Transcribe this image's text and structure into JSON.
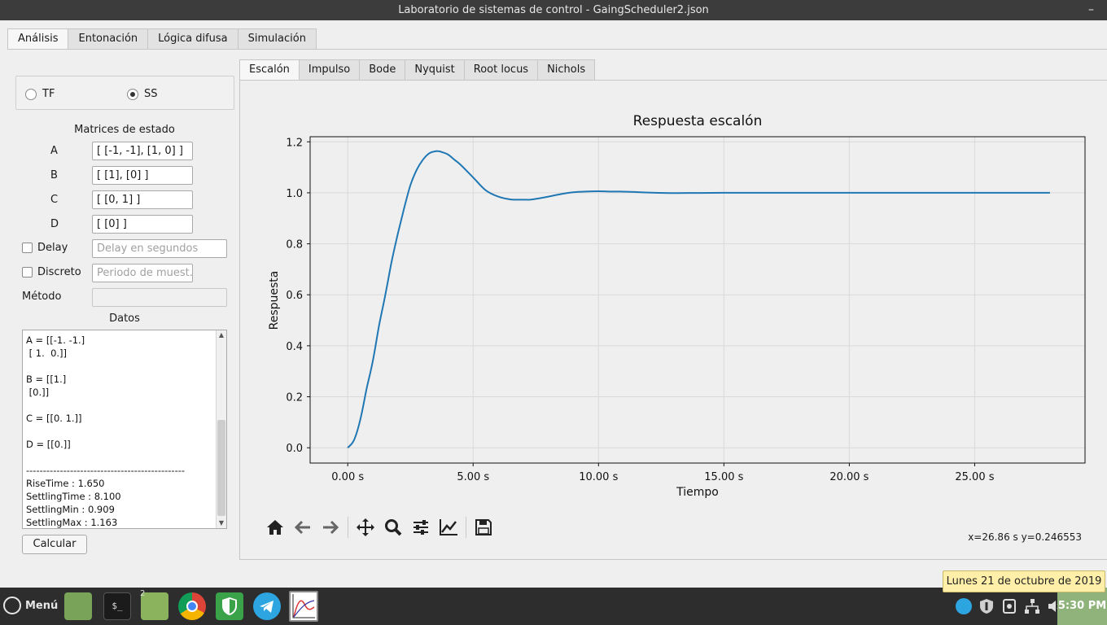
{
  "window": {
    "title": "Laboratorio de sistemas de control - GaingScheduler2.json",
    "minimize": "–"
  },
  "main_tabs": [
    {
      "label": "Análisis"
    },
    {
      "label": "Entonación"
    },
    {
      "label": "Lógica difusa"
    },
    {
      "label": "Simulación"
    }
  ],
  "mode": {
    "tf_label": "TF",
    "ss_label": "SS",
    "selected": "SS"
  },
  "matrices": {
    "title": "Matrices de estado",
    "A": {
      "label": "A",
      "value": "[ [-1, -1], [1,  0] ]"
    },
    "B": {
      "label": "B",
      "value": "[ [1], [0] ]"
    },
    "C": {
      "label": "C",
      "value": "[ [0, 1] ]"
    },
    "D": {
      "label": "D",
      "value": "[ [0] ]"
    }
  },
  "delay": {
    "label": "Delay",
    "placeholder": "Delay en segundos",
    "checked": false
  },
  "discreto": {
    "label": "Discreto",
    "placeholder": "Periodo de muest...",
    "checked": false
  },
  "metodo": {
    "label": "Método",
    "value": ""
  },
  "datos": {
    "title": "Datos",
    "text": "A = [[-1. -1.]\n [ 1.  0.]]\n\nB = [[1.]\n [0.]]\n\nC = [[0. 1.]]\n\nD = [[0.]]\n\n-----------------------------------------------\nRiseTime : 1.650\nSettlingTime : 8.100\nSettlingMin : 0.909\nSettlingMax : 1.163"
  },
  "calcular_label": "Calcular",
  "plot_tabs": [
    {
      "label": "Escalón"
    },
    {
      "label": "Impulso"
    },
    {
      "label": "Bode"
    },
    {
      "label": "Nyquist"
    },
    {
      "label": "Root locus"
    },
    {
      "label": "Nichols"
    }
  ],
  "chart_data": {
    "type": "line",
    "title": "Respuesta escalón",
    "xlabel": "Tiempo",
    "ylabel": "Respuesta",
    "xlim": [
      -1.5,
      29.4
    ],
    "ylim": [
      -0.06,
      1.22
    ],
    "xticks": [
      0,
      5,
      10,
      15,
      20,
      25
    ],
    "xtick_labels": [
      "0.00 s",
      "5.00 s",
      "10.00 s",
      "15.00 s",
      "20.00 s",
      "25.00 s"
    ],
    "yticks": [
      0.0,
      0.2,
      0.4,
      0.6,
      0.8,
      1.0,
      1.2
    ],
    "ytick_labels": [
      "0.0",
      "0.2",
      "0.4",
      "0.6",
      "0.8",
      "1.0",
      "1.2"
    ],
    "grid": true,
    "color": "#1f77b4",
    "series": [
      {
        "x": [
          0,
          0.25,
          0.5,
          0.75,
          1.0,
          1.25,
          1.5,
          1.75,
          2.0,
          2.25,
          2.5,
          2.75,
          3.0,
          3.25,
          3.5,
          3.63,
          3.75,
          4.0,
          4.25,
          4.5,
          5.0,
          5.5,
          6.0,
          6.5,
          7.0,
          7.26,
          7.5,
          8.0,
          8.5,
          9.0,
          9.5,
          10.0,
          10.5,
          10.88,
          11.5,
          12.0,
          13.0,
          14.0,
          15.0,
          16.0,
          17.0,
          18.0,
          20.0,
          22.0,
          24.0,
          26.0,
          28.0
        ],
        "y": [
          0,
          0.03,
          0.11,
          0.23,
          0.34,
          0.48,
          0.6,
          0.73,
          0.84,
          0.94,
          1.03,
          1.09,
          1.13,
          1.155,
          1.163,
          1.163,
          1.16,
          1.15,
          1.13,
          1.11,
          1.06,
          1.01,
          0.985,
          0.974,
          0.973,
          0.973,
          0.976,
          0.985,
          0.995,
          1.002,
          1.005,
          1.006,
          1.005,
          1.005,
          1.003,
          1.001,
          0.999,
          0.9995,
          1.0,
          1.0,
          1.0,
          1.0,
          1.0,
          1.0,
          1.0,
          1.0,
          1.0
        ]
      }
    ]
  },
  "cursor_readout": "x=26.86 s y=0.246553",
  "taskbar": {
    "menu_label": "Menú",
    "apps": [
      "files-icon",
      "terminal-icon",
      "folder-icon",
      "chrome-icon",
      "shield-icon",
      "telegram-icon",
      "plot-app-icon"
    ],
    "folder_badge": "2",
    "terminal_prompt": "$_",
    "time": "5:30 PM",
    "date_tooltip": "Lunes 21 de octubre de 2019"
  }
}
